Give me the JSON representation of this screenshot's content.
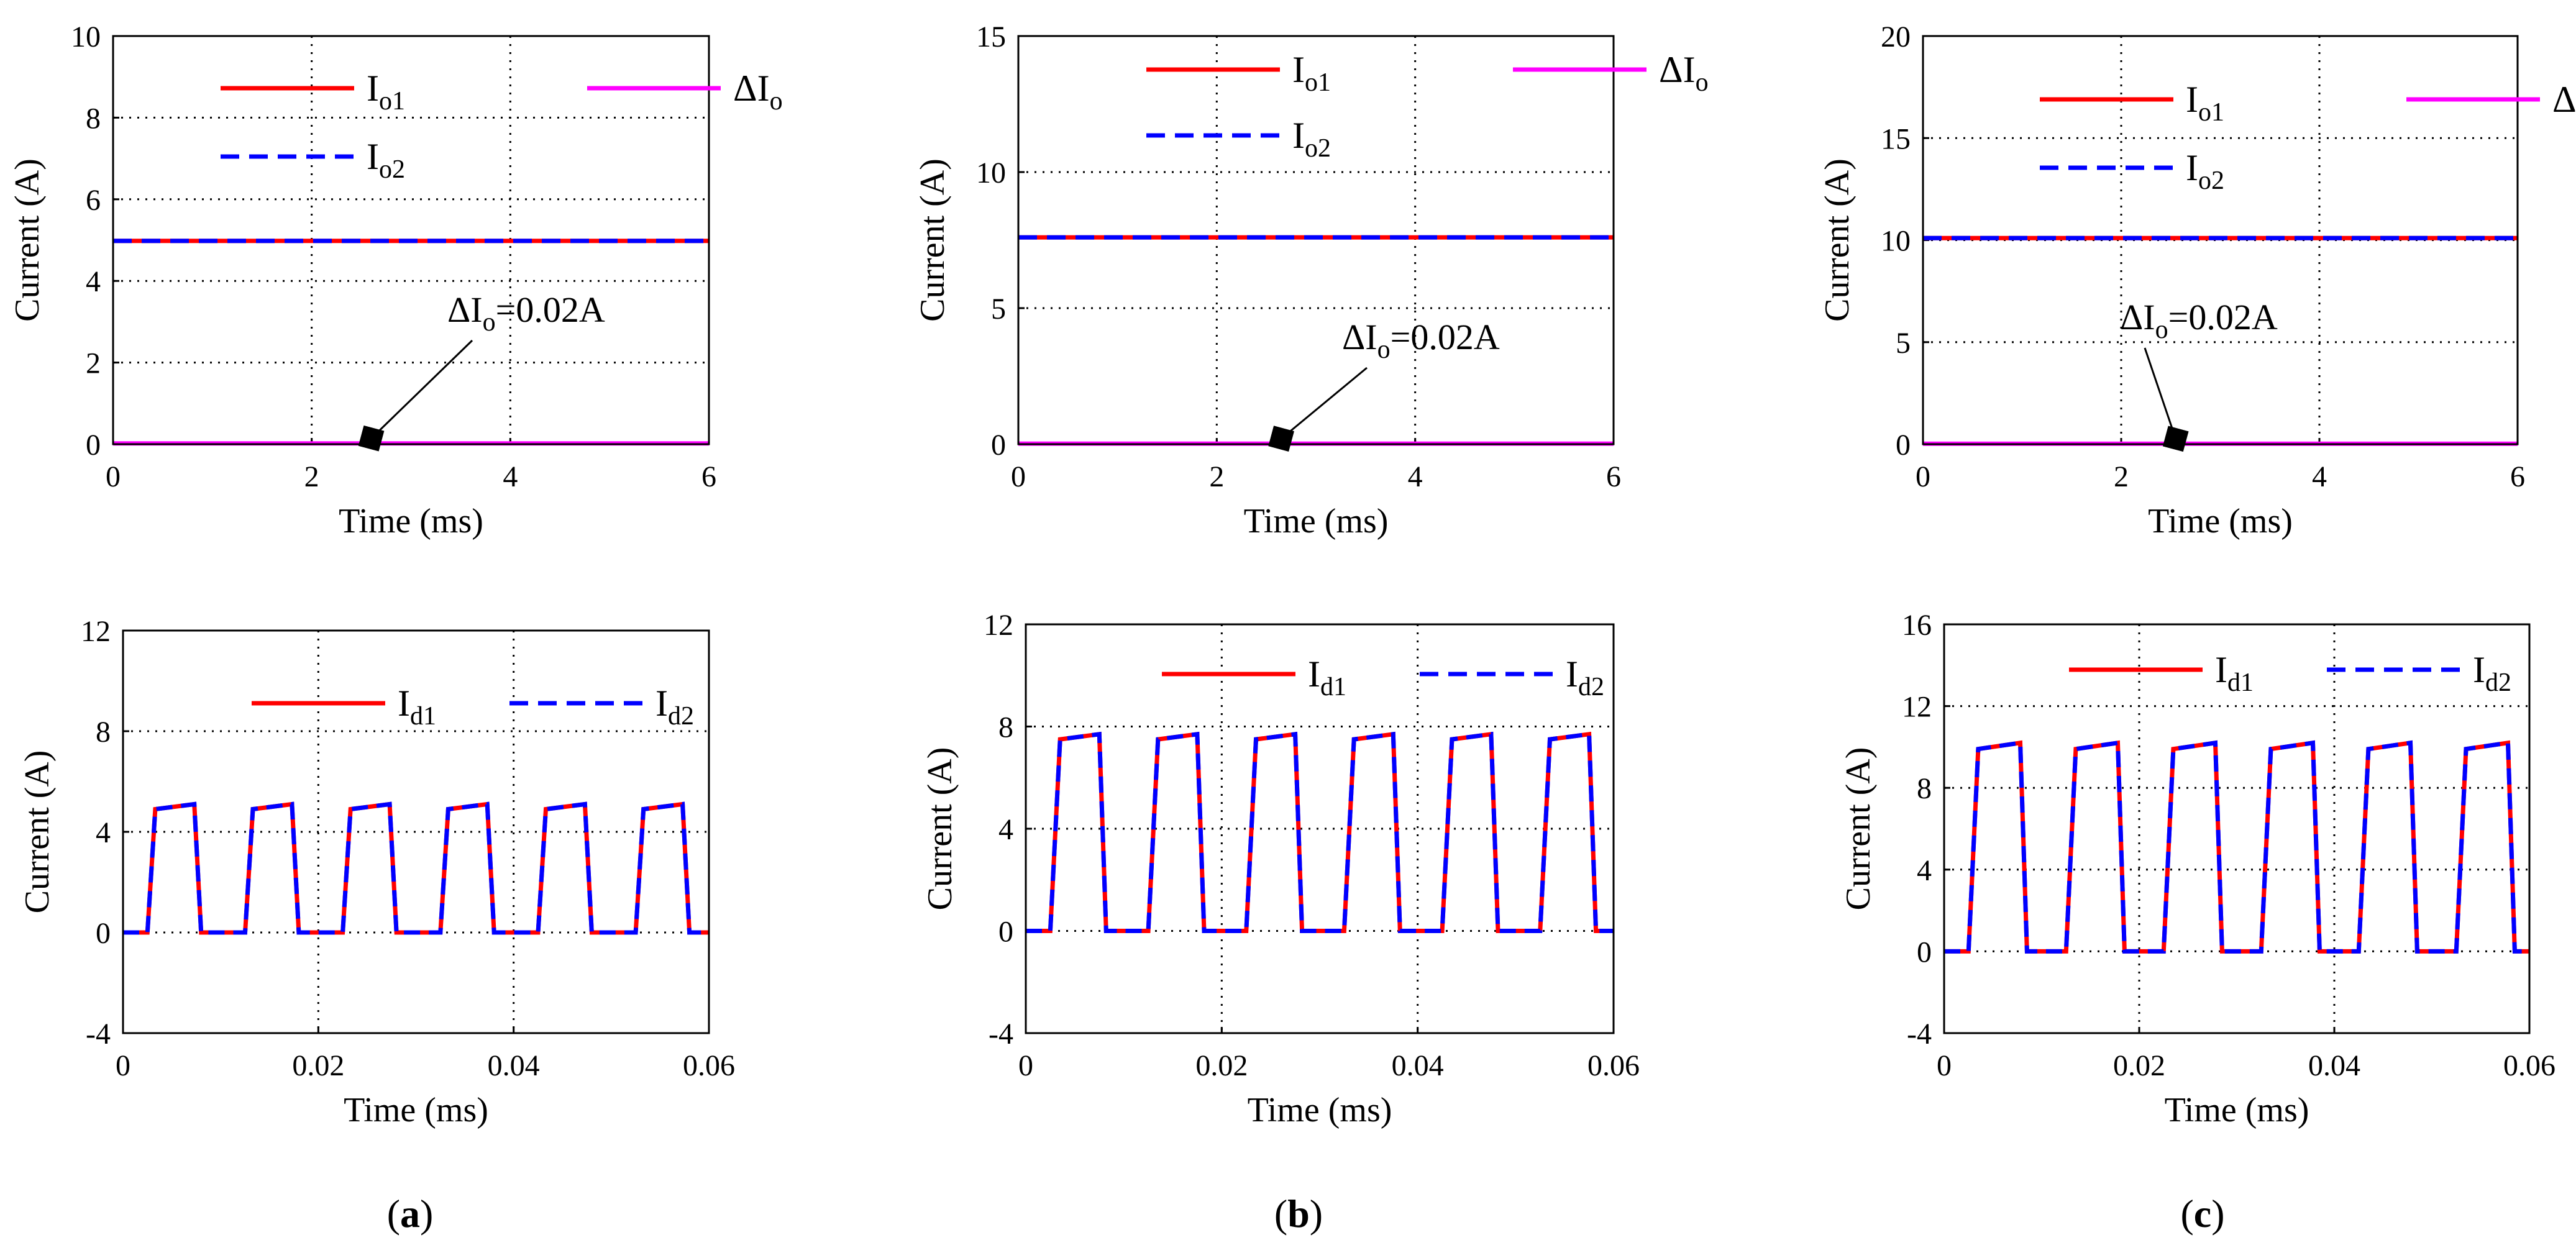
{
  "colors": {
    "io1": "#ff0000",
    "io2": "#0000ff",
    "dio": "#ff00ff",
    "grid": "#000000",
    "marker": "#000000"
  },
  "chart_data": [
    {
      "id": "a-top",
      "type": "line",
      "xlabel": "Time (ms)",
      "ylabel": "Current (A)",
      "xlim": [
        0,
        6
      ],
      "ylim": [
        0,
        10
      ],
      "xticks": [
        "0",
        "2",
        "4",
        "6"
      ],
      "yticks": [
        "0",
        "2",
        "4",
        "6",
        "8",
        "10"
      ],
      "grid": true,
      "series": [
        {
          "name": "Io1",
          "label_main": "I",
          "label_sub": "o1",
          "style": "solid",
          "color": "#ff0000",
          "x": [
            0,
            6
          ],
          "y": [
            4.98,
            4.98
          ]
        },
        {
          "name": "Io2",
          "label_main": "I",
          "label_sub": "o2",
          "style": "dashed",
          "color": "#0000ff",
          "x": [
            0,
            6
          ],
          "y": [
            4.98,
            4.98
          ]
        },
        {
          "name": "ΔIo",
          "label_main": "ΔI",
          "label_sub": "o",
          "style": "solid",
          "color": "#ff00ff",
          "x": [
            0,
            6
          ],
          "y": [
            0.02,
            0.02
          ]
        }
      ],
      "annotation": {
        "main": "ΔI",
        "sub": "o",
        "tail": "=0.02A",
        "x": 2.6,
        "y": 0.02
      }
    },
    {
      "id": "b-top",
      "type": "line",
      "xlabel": "Time (ms)",
      "ylabel": "Current (A)",
      "xlim": [
        0,
        6
      ],
      "ylim": [
        0,
        15
      ],
      "xticks": [
        "0",
        "2",
        "4",
        "6"
      ],
      "yticks": [
        "0",
        "5",
        "10",
        "15"
      ],
      "grid": true,
      "series": [
        {
          "name": "Io1",
          "label_main": "I",
          "label_sub": "o1",
          "style": "solid",
          "color": "#ff0000",
          "x": [
            0,
            6
          ],
          "y": [
            7.6,
            7.6
          ]
        },
        {
          "name": "Io2",
          "label_main": "I",
          "label_sub": "o2",
          "style": "dashed",
          "color": "#0000ff",
          "x": [
            0,
            6
          ],
          "y": [
            7.6,
            7.6
          ]
        },
        {
          "name": "ΔIo",
          "label_main": "ΔI",
          "label_sub": "o",
          "style": "solid",
          "color": "#ff00ff",
          "x": [
            0,
            6
          ],
          "y": [
            0.02,
            0.02
          ]
        }
      ],
      "annotation": {
        "main": "ΔI",
        "sub": "o",
        "tail": "=0.02A",
        "x": 2.65,
        "y": 0.02
      }
    },
    {
      "id": "c-top",
      "type": "line",
      "xlabel": "Time (ms)",
      "ylabel": "Current (A)",
      "xlim": [
        0,
        6
      ],
      "ylim": [
        0,
        20
      ],
      "xticks": [
        "0",
        "2",
        "4",
        "6"
      ],
      "yticks": [
        "0",
        "5",
        "10",
        "15",
        "20"
      ],
      "grid": true,
      "series": [
        {
          "name": "Io1",
          "label_main": "I",
          "label_sub": "o1",
          "style": "solid",
          "color": "#ff0000",
          "x": [
            0,
            6
          ],
          "y": [
            10.1,
            10.1
          ]
        },
        {
          "name": "Io2",
          "label_main": "I",
          "label_sub": "o2",
          "style": "dashed",
          "color": "#0000ff",
          "x": [
            0,
            6
          ],
          "y": [
            10.1,
            10.1
          ]
        },
        {
          "name": "ΔIo",
          "label_main": "ΔI",
          "label_sub": "o",
          "style": "solid",
          "color": "#ff00ff",
          "x": [
            0,
            6
          ],
          "y": [
            0.02,
            0.02
          ]
        }
      ],
      "annotation": {
        "main": "ΔI",
        "sub": "o",
        "tail": "=0.02A",
        "x": 2.55,
        "y": 0.02
      }
    },
    {
      "id": "a-bot",
      "type": "line",
      "xlabel": "Time (ms)",
      "ylabel": "Current (A)",
      "xlim": [
        0,
        0.06
      ],
      "ylim": [
        -4,
        12
      ],
      "xticks": [
        "0",
        "0.02",
        "0.04",
        "0.06"
      ],
      "yticks": [
        "-4",
        "0",
        "4",
        "8",
        "12"
      ],
      "grid": true,
      "period": 0.01,
      "n_periods": 6,
      "pulse": {
        "rise_start": 0.0025,
        "rise_end": 0.0033,
        "fall_start": 0.0073,
        "fall_end": 0.008,
        "level_start": 4.9,
        "level_end": 5.1
      },
      "series": [
        {
          "name": "Id1",
          "label_main": "I",
          "label_sub": "d1",
          "style": "solid",
          "color": "#ff0000"
        },
        {
          "name": "Id2",
          "label_main": "I",
          "label_sub": "d2",
          "style": "dashed",
          "color": "#0000ff"
        }
      ]
    },
    {
      "id": "b-bot",
      "type": "line",
      "xlabel": "Time (ms)",
      "ylabel": "Current (A)",
      "xlim": [
        0,
        0.06
      ],
      "ylim": [
        -4,
        12
      ],
      "xticks": [
        "0",
        "0.02",
        "0.04",
        "0.06"
      ],
      "yticks": [
        "-4",
        "0",
        "4",
        "8",
        "12"
      ],
      "grid": true,
      "period": 0.01,
      "n_periods": 6,
      "pulse": {
        "rise_start": 0.0025,
        "rise_end": 0.0035,
        "fall_start": 0.0075,
        "fall_end": 0.0082,
        "level_start": 7.5,
        "level_end": 7.7
      },
      "series": [
        {
          "name": "Id1",
          "label_main": "I",
          "label_sub": "d1",
          "style": "solid",
          "color": "#ff0000"
        },
        {
          "name": "Id2",
          "label_main": "I",
          "label_sub": "d2",
          "style": "dashed",
          "color": "#0000ff"
        }
      ]
    },
    {
      "id": "c-bot",
      "type": "line",
      "xlabel": "Time (ms)",
      "ylabel": "Current (A)",
      "xlim": [
        0,
        0.06
      ],
      "ylim": [
        -4,
        16
      ],
      "xticks": [
        "0",
        "0.02",
        "0.04",
        "0.06"
      ],
      "yticks": [
        "-4",
        "0",
        "4",
        "8",
        "12",
        "16"
      ],
      "grid": true,
      "period": 0.01,
      "n_periods": 6,
      "pulse": {
        "rise_start": 0.0025,
        "rise_end": 0.0035,
        "fall_start": 0.0078,
        "fall_end": 0.0085,
        "level_start": 9.9,
        "level_end": 10.2
      },
      "series": [
        {
          "name": "Id1",
          "label_main": "I",
          "label_sub": "d1",
          "style": "solid",
          "color": "#ff0000"
        },
        {
          "name": "Id2",
          "label_main": "I",
          "label_sub": "d2",
          "style": "dashed",
          "color": "#0000ff"
        }
      ]
    }
  ],
  "captions": [
    {
      "open": "(",
      "letter": "a",
      "close": ")"
    },
    {
      "open": "(",
      "letter": "b",
      "close": ")"
    },
    {
      "open": "(",
      "letter": "c",
      "close": ")"
    }
  ]
}
